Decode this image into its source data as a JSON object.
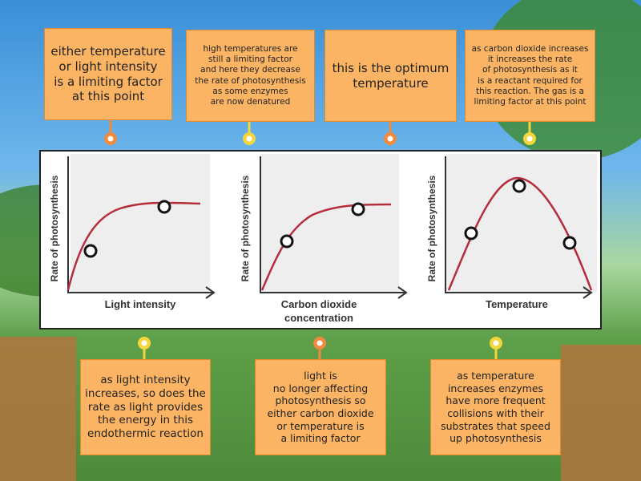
{
  "graphs": [
    {
      "y_label": "Rate of photosynthesis",
      "x_label": [
        "Light intensity"
      ]
    },
    {
      "y_label": "Rate of photosynthesis",
      "x_label": [
        "Carbon dioxide",
        "concentration"
      ]
    },
    {
      "y_label": "Rate of photosynthesis",
      "x_label": [
        "Temperature"
      ]
    }
  ],
  "labels": [
    {
      "lines": [
        "either temperature",
        "or light intensity",
        "is a limiting factor",
        "at this point"
      ]
    },
    {
      "lines": [
        "high temperatures are",
        "still a limiting factor",
        "and here they decrease",
        "the rate of photosynthesis",
        "as some enzymes",
        "are now denatured"
      ]
    },
    {
      "lines": [
        "this is the optimum",
        "temperature"
      ]
    },
    {
      "lines": [
        "as carbon dioxide increases",
        "it increases the rate",
        "of photosynthesis as it",
        "is a reactant required for",
        "this reaction. The gas is a",
        "limiting factor at this point"
      ]
    },
    {
      "lines": [
        "as light intensity",
        "increases, so does the",
        "rate as light provides",
        "the energy in this",
        "endothermic reaction"
      ]
    },
    {
      "lines": [
        "light is",
        "no longer affecting",
        "photosynthesis so",
        "either carbon dioxide",
        "or temperature is",
        "a limiting factor"
      ]
    },
    {
      "lines": [
        "as temperature",
        "increases enzymes",
        "have more frequent",
        "collisions with their",
        "substrates that speed",
        "up photosynthesis"
      ]
    }
  ]
}
